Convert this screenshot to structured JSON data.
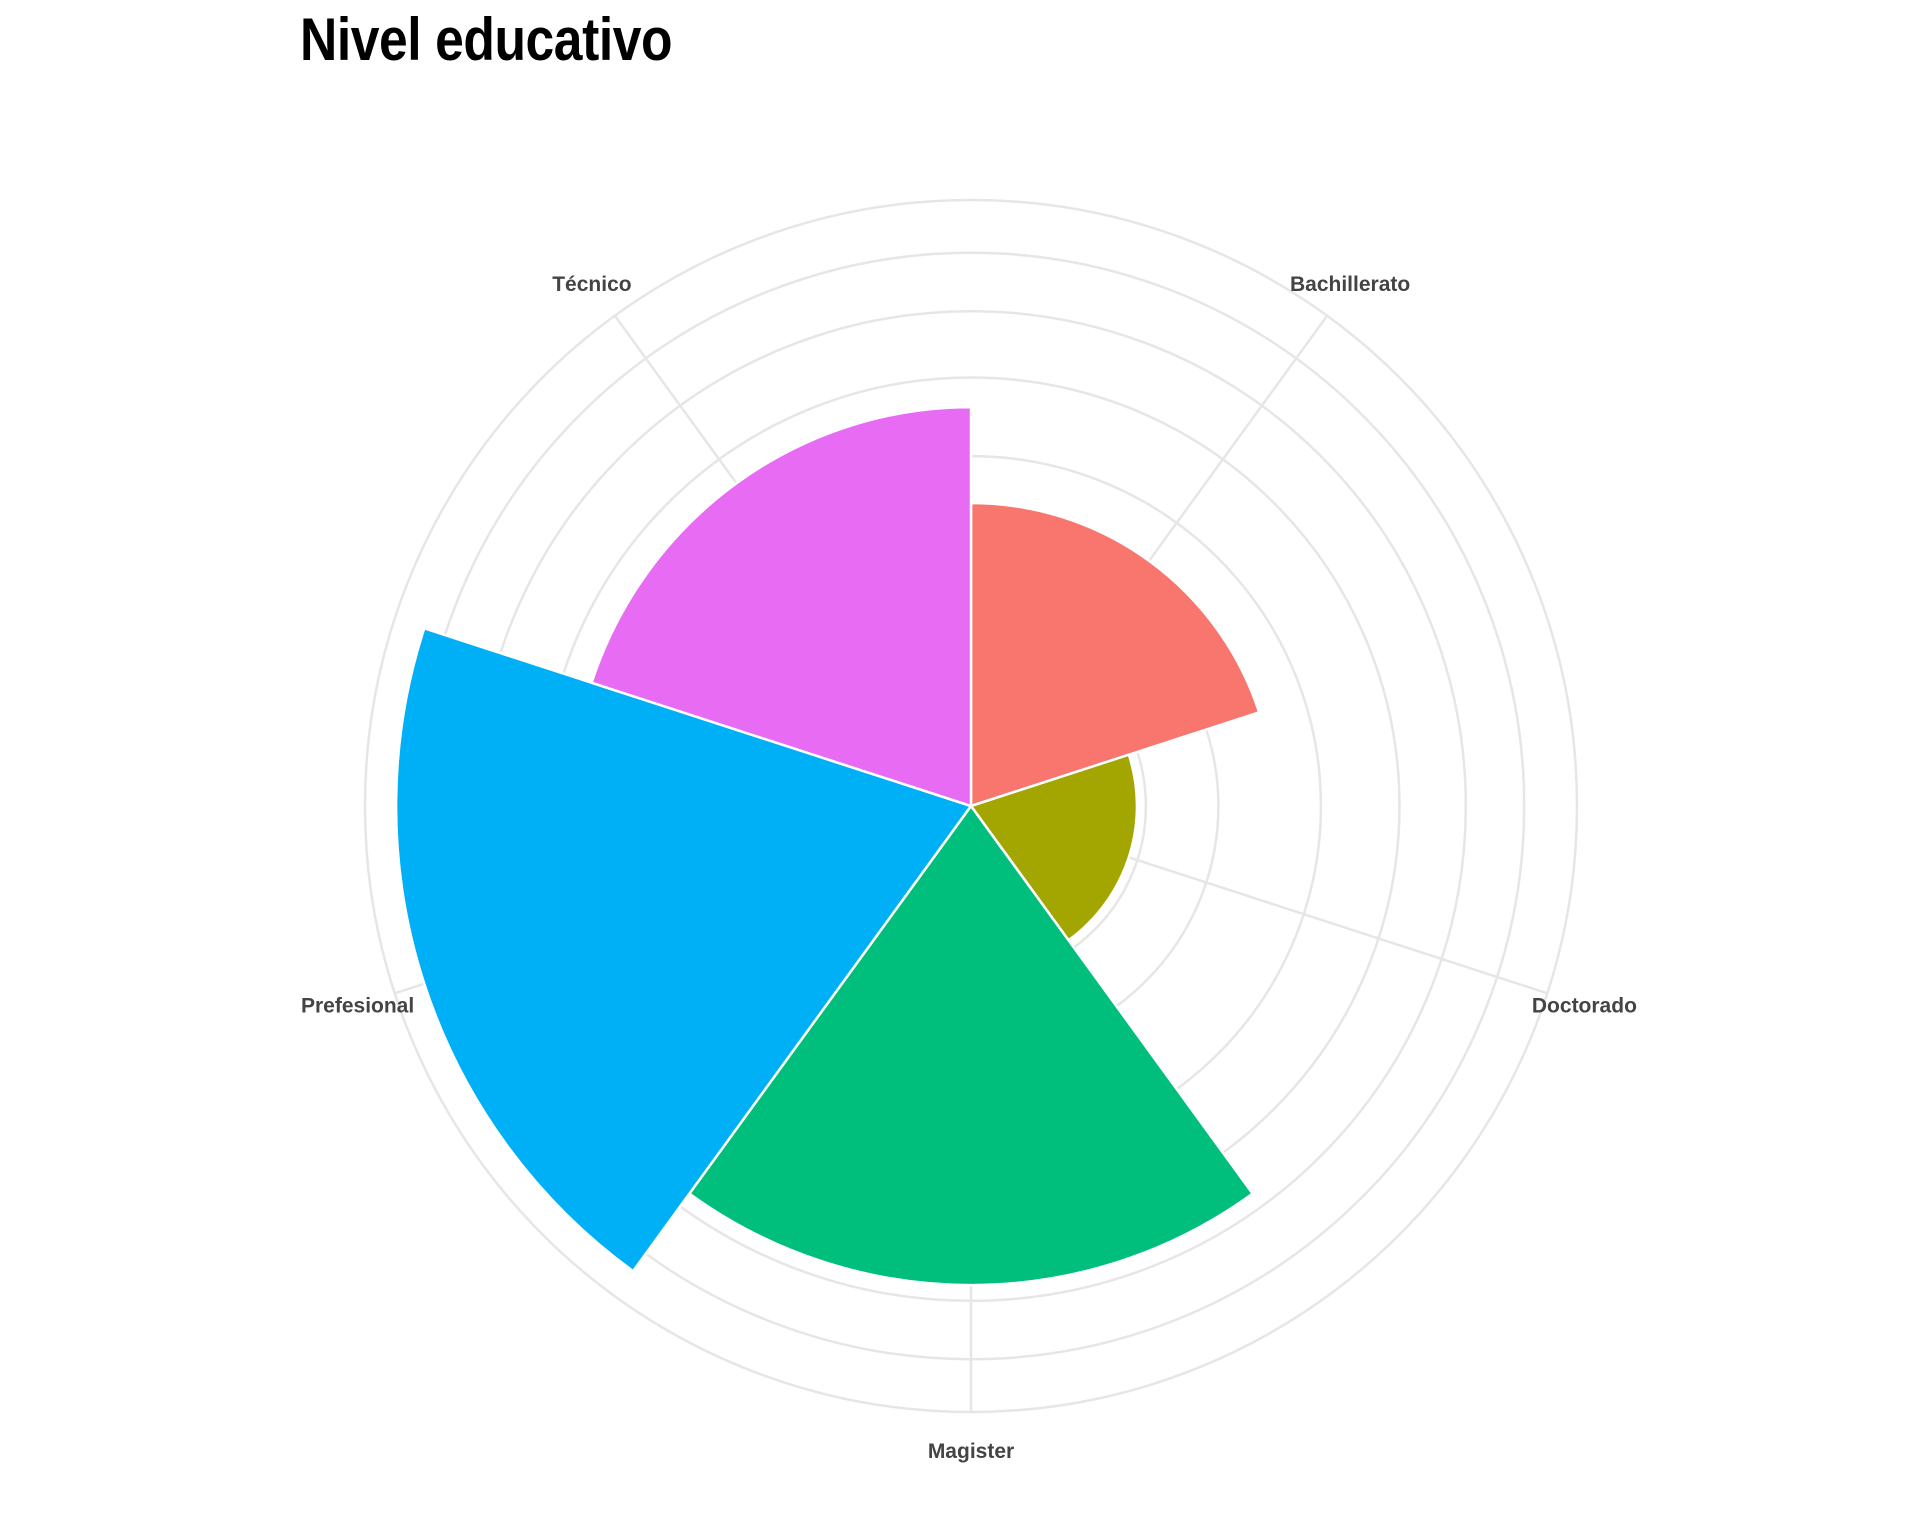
{
  "chart_data": {
    "type": "polar-bar",
    "title": "Nivel educativo",
    "categories": [
      "Bachillerato",
      "Doctorado",
      "Magister",
      "Prefesional",
      "Técnico"
    ],
    "values": [
      150,
      45,
      375,
      540,
      260
    ],
    "colors": [
      "#F8766D",
      "#A3A500",
      "#00BF7D",
      "#00B0F6",
      "#E76BF3"
    ],
    "rlim": [
      0,
      600
    ],
    "grid": true,
    "legend": "none"
  }
}
